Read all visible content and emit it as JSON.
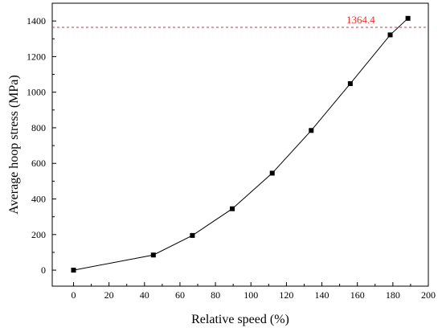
{
  "chart_data": {
    "type": "line",
    "xlabel": "Relative speed (%)",
    "ylabel": "Average hoop stress (MPa)",
    "xlim": [
      -12,
      200
    ],
    "ylim": [
      -90,
      1500
    ],
    "xticks": [
      0,
      20,
      40,
      60,
      80,
      100,
      120,
      140,
      160,
      180,
      200
    ],
    "yticks": [
      0,
      200,
      400,
      600,
      800,
      1000,
      1200,
      1400
    ],
    "series": [
      {
        "x": [
          0,
          45,
          67,
          89.5,
          112,
          134,
          156,
          178.5,
          188.5
        ],
        "y": [
          0,
          85,
          195,
          345,
          545,
          785,
          1048,
          1322,
          1415
        ],
        "marker": "square",
        "color": "#000000"
      }
    ],
    "reference_line": {
      "y": 1364.4,
      "label": "1364.4",
      "style": "dashed",
      "color": "#e8322d"
    },
    "grid": false,
    "legend": "none"
  }
}
